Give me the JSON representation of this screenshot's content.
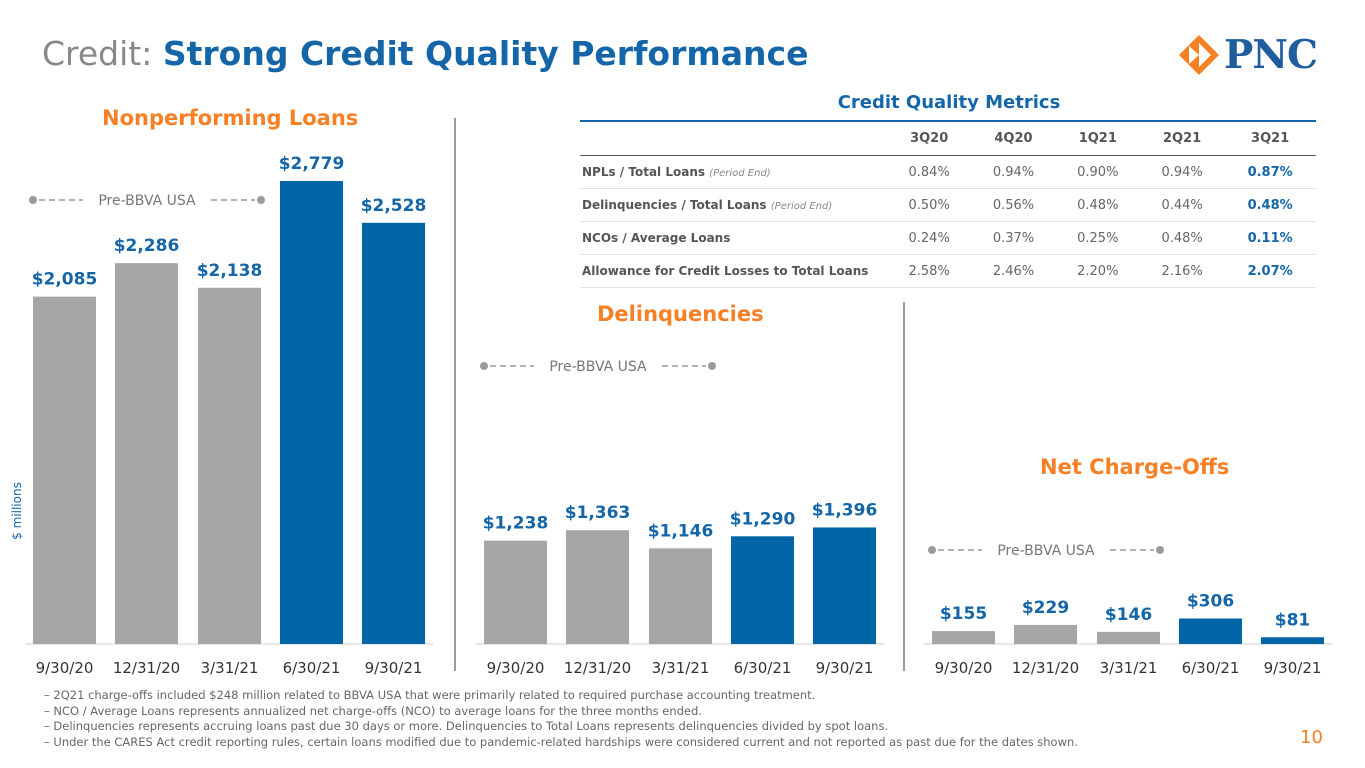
{
  "title": {
    "prefix": "Credit: ",
    "main": "Strong Credit Quality Performance"
  },
  "logo": {
    "text": "PNC",
    "mark": "®"
  },
  "y_axis_label": "$ millions",
  "chart_data": [
    {
      "type": "bar",
      "title": "Nonperforming Loans",
      "categories": [
        "9/30/20",
        "12/31/20",
        "3/31/21",
        "6/30/21",
        "9/30/21"
      ],
      "values": [
        2085,
        2286,
        2138,
        2779,
        2528
      ],
      "labels": [
        "$2,085",
        "$2,286",
        "$2,138",
        "$2,779",
        "$2,528"
      ],
      "colors": [
        "#a6a6a6",
        "#a6a6a6",
        "#a6a6a6",
        "#0066a8",
        "#0066a8"
      ],
      "annotation": "Pre-BBVA USA",
      "ylabel": "$ millions",
      "ylim": [
        0,
        2779
      ]
    },
    {
      "type": "bar",
      "title": "Delinquencies",
      "categories": [
        "9/30/20",
        "12/31/20",
        "3/31/21",
        "6/30/21",
        "9/30/21"
      ],
      "values": [
        1238,
        1363,
        1146,
        1290,
        1396
      ],
      "labels": [
        "$1,238",
        "$1,363",
        "$1,146",
        "$1,290",
        "$1,396"
      ],
      "colors": [
        "#a6a6a6",
        "#a6a6a6",
        "#a6a6a6",
        "#0066a8",
        "#0066a8"
      ],
      "annotation": "Pre-BBVA USA",
      "ylim": [
        0,
        2779
      ]
    },
    {
      "type": "bar",
      "title": "Net Charge-Offs",
      "categories": [
        "9/30/20",
        "12/31/20",
        "3/31/21",
        "6/30/21",
        "9/30/21"
      ],
      "values": [
        155,
        229,
        146,
        306,
        81
      ],
      "labels": [
        "$155",
        "$229",
        "$146",
        "$306",
        "$81"
      ],
      "colors": [
        "#a6a6a6",
        "#a6a6a6",
        "#a6a6a6",
        "#0066a8",
        "#0066a8"
      ],
      "annotation": "Pre-BBVA USA",
      "ylim": [
        0,
        1200
      ]
    }
  ],
  "metrics": {
    "title": "Credit Quality Metrics",
    "columns": [
      "",
      "3Q20",
      "4Q20",
      "1Q21",
      "2Q21",
      "3Q21"
    ],
    "rows": [
      {
        "label": "NPLs / Total Loans",
        "note": "(Period End)",
        "values": [
          "0.84%",
          "0.94%",
          "0.90%",
          "0.94%",
          "0.87%"
        ]
      },
      {
        "label": "Delinquencies / Total Loans",
        "note": "(Period End)",
        "values": [
          "0.50%",
          "0.56%",
          "0.48%",
          "0.44%",
          "0.48%"
        ]
      },
      {
        "label": "NCOs / Average Loans",
        "note": "",
        "values": [
          "0.24%",
          "0.37%",
          "0.25%",
          "0.48%",
          "0.11%"
        ]
      },
      {
        "label": "Allowance for Credit Losses to Total Loans",
        "note": "",
        "values": [
          "2.58%",
          "2.46%",
          "2.20%",
          "2.16%",
          "2.07%"
        ]
      }
    ]
  },
  "footnotes": [
    "– 2Q21 charge-offs included $248 million related to BBVA USA that were primarily related to required purchase accounting treatment.",
    "– NCO / Average Loans represents annualized net charge-offs (NCO) to average loans for the three months ended.",
    "– Delinquencies represents accruing loans past due 30 days or more. Delinquencies to Total Loans represents delinquencies divided by spot loans.",
    "– Under the CARES Act credit reporting rules, certain loans modified due to pandemic-related hardships were considered current and not reported as past due for the dates shown."
  ],
  "page_number": "10"
}
